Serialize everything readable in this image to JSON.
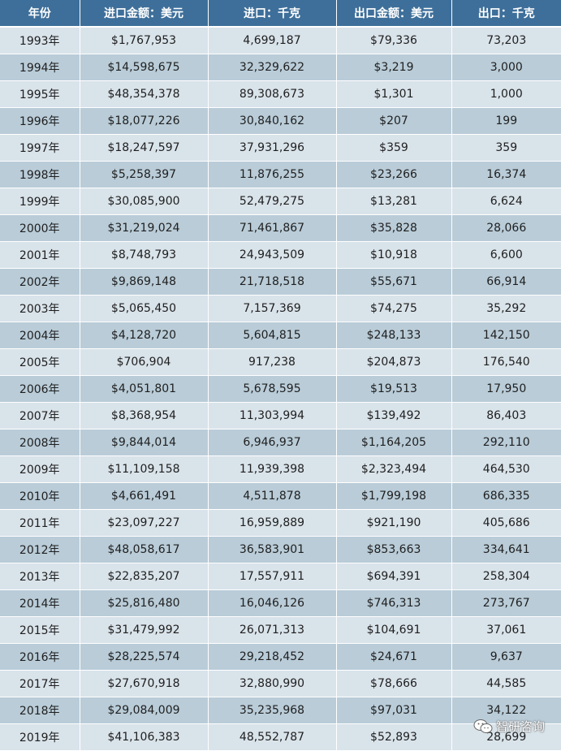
{
  "table": {
    "headers": [
      "年份",
      "进口金额：美元",
      "进口：千克",
      "出口金额：美元",
      "出口：千克"
    ],
    "rows": [
      [
        "1993年",
        "$1,767,953",
        "4,699,187",
        "$79,336",
        "73,203"
      ],
      [
        "1994年",
        "$14,598,675",
        "32,329,622",
        "$3,219",
        "3,000"
      ],
      [
        "1995年",
        "$48,354,378",
        "89,308,673",
        "$1,301",
        "1,000"
      ],
      [
        "1996年",
        "$18,077,226",
        "30,840,162",
        "$207",
        "199"
      ],
      [
        "1997年",
        "$18,247,597",
        "37,931,296",
        "$359",
        "359"
      ],
      [
        "1998年",
        "$5,258,397",
        "11,876,255",
        "$23,266",
        "16,374"
      ],
      [
        "1999年",
        "$30,085,900",
        "52,479,275",
        "$13,281",
        "6,624"
      ],
      [
        "2000年",
        "$31,219,024",
        "71,461,867",
        "$35,828",
        "28,066"
      ],
      [
        "2001年",
        "$8,748,793",
        "24,943,509",
        "$10,918",
        "6,600"
      ],
      [
        "2002年",
        "$9,869,148",
        "21,718,518",
        "$55,671",
        "66,914"
      ],
      [
        "2003年",
        "$5,065,450",
        "7,157,369",
        "$74,275",
        "35,292"
      ],
      [
        "2004年",
        "$4,128,720",
        "5,604,815",
        "$248,133",
        "142,150"
      ],
      [
        "2005年",
        "$706,904",
        "917,238",
        "$204,873",
        "176,540"
      ],
      [
        "2006年",
        "$4,051,801",
        "5,678,595",
        "$19,513",
        "17,950"
      ],
      [
        "2007年",
        "$8,368,954",
        "11,303,994",
        "$139,492",
        "86,403"
      ],
      [
        "2008年",
        "$9,844,014",
        "6,946,937",
        "$1,164,205",
        "292,110"
      ],
      [
        "2009年",
        "$11,109,158",
        "11,939,398",
        "$2,323,494",
        "464,530"
      ],
      [
        "2010年",
        "$4,661,491",
        "4,511,878",
        "$1,799,198",
        "686,335"
      ],
      [
        "2011年",
        "$23,097,227",
        "16,959,889",
        "$921,190",
        "405,686"
      ],
      [
        "2012年",
        "$48,058,617",
        "36,583,901",
        "$853,663",
        "334,641"
      ],
      [
        "2013年",
        "$22,835,207",
        "17,557,911",
        "$694,391",
        "258,304"
      ],
      [
        "2014年",
        "$25,816,480",
        "16,046,126",
        "$746,313",
        "273,767"
      ],
      [
        "2015年",
        "$31,479,992",
        "26,071,313",
        "$104,691",
        "37,061"
      ],
      [
        "2016年",
        "$28,225,574",
        "29,218,452",
        "$24,671",
        "9,637"
      ],
      [
        "2017年",
        "$27,670,918",
        "32,880,990",
        "$78,666",
        "44,585"
      ],
      [
        "2018年",
        "$29,084,009",
        "35,235,968",
        "$97,031",
        "34,122"
      ],
      [
        "2019年",
        "$41,106,383",
        "48,552,787",
        "$52,893",
        "28,699"
      ]
    ]
  },
  "watermark": {
    "text": "智研咨询",
    "icon": "wechat-icon"
  },
  "colors": {
    "header_bg": "#3e6f9a",
    "row_light": "#d9e3ea",
    "row_dark": "#b9ccd8"
  }
}
